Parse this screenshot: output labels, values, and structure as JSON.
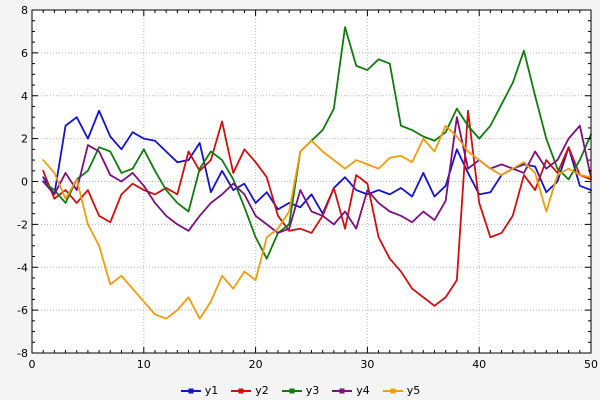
{
  "chart_data": {
    "type": "line",
    "title": "",
    "xlim": [
      0,
      50
    ],
    "ylim": [
      -8,
      8
    ],
    "x_ticks": [
      0,
      10,
      20,
      30,
      40,
      50
    ],
    "y_ticks": [
      -8,
      -6,
      -4,
      -2,
      0,
      2,
      4,
      6,
      8
    ],
    "x_minor_step": 1,
    "y_minor_step": 0.5,
    "grid": true,
    "legend_position": "bottom",
    "plot_bg": "#ffffff",
    "outer_bg": "#f4f4f4",
    "grid_color": "#b8b8b8",
    "x": [
      1,
      2,
      3,
      4,
      5,
      6,
      7,
      8,
      9,
      10,
      11,
      12,
      13,
      14,
      15,
      16,
      17,
      18,
      19,
      20,
      21,
      22,
      23,
      24,
      25,
      26,
      27,
      28,
      29,
      30,
      31,
      32,
      33,
      34,
      35,
      36,
      37,
      38,
      39,
      40,
      41,
      42,
      43,
      44,
      45,
      46,
      47,
      48,
      49,
      50
    ],
    "series": [
      {
        "name": "y1",
        "color": "#1414cc",
        "values": [
          0.2,
          -0.6,
          2.6,
          3.0,
          2.0,
          3.3,
          2.1,
          1.5,
          2.3,
          2.0,
          1.9,
          1.4,
          0.9,
          1.0,
          1.8,
          -0.5,
          0.5,
          -0.4,
          -0.1,
          -1.0,
          -0.5,
          -1.3,
          -1.0,
          -1.2,
          -0.6,
          -1.5,
          -0.3,
          0.2,
          -0.4,
          -0.6,
          -0.4,
          -0.6,
          -0.3,
          -0.7,
          0.4,
          -0.7,
          -0.2,
          1.5,
          0.4,
          -0.6,
          -0.5,
          0.3,
          0.6,
          0.8,
          0.7,
          -0.5,
          0.0,
          1.6,
          -0.2,
          -0.4
        ]
      },
      {
        "name": "y2",
        "color": "#d01010",
        "values": [
          0.5,
          -0.8,
          -0.4,
          -1.0,
          -0.4,
          -1.6,
          -1.9,
          -0.6,
          -0.1,
          -0.4,
          -0.6,
          -0.3,
          -0.6,
          1.4,
          0.5,
          1.0,
          2.8,
          0.4,
          1.5,
          0.9,
          0.2,
          -1.6,
          -2.3,
          -2.2,
          -2.4,
          -1.6,
          -0.3,
          -2.2,
          0.3,
          -0.1,
          -2.6,
          -3.6,
          -4.2,
          -5.0,
          -5.4,
          -5.8,
          -5.4,
          -4.6,
          3.3,
          -1.0,
          -2.6,
          -2.4,
          -1.6,
          0.3,
          -0.4,
          1.0,
          0.4,
          1.6,
          0.3,
          0.1
        ]
      },
      {
        "name": "y3",
        "color": "#107c10",
        "values": [
          0.0,
          -0.4,
          -1.0,
          0.1,
          0.5,
          1.6,
          1.4,
          0.4,
          0.6,
          1.5,
          0.5,
          -0.4,
          -1.0,
          -1.4,
          0.6,
          1.4,
          1.0,
          0.1,
          -1.2,
          -2.6,
          -3.6,
          -2.4,
          -2.0,
          1.4,
          1.9,
          2.4,
          3.4,
          7.2,
          5.4,
          5.2,
          5.7,
          5.5,
          2.6,
          2.4,
          2.1,
          1.9,
          2.3,
          3.4,
          2.6,
          2.0,
          2.6,
          3.6,
          4.6,
          6.1,
          4.0,
          2.0,
          0.6,
          0.1,
          1.0,
          2.2
        ]
      },
      {
        "name": "y4",
        "color": "#7c107c",
        "values": [
          0.0,
          -0.6,
          0.4,
          -0.4,
          1.7,
          1.4,
          0.3,
          0.0,
          0.4,
          -0.2,
          -1.0,
          -1.6,
          -2.0,
          -2.3,
          -1.6,
          -1.0,
          -0.6,
          -0.1,
          -0.6,
          -1.6,
          -2.0,
          -2.4,
          -2.2,
          -0.4,
          -1.4,
          -1.6,
          -2.0,
          -1.4,
          -2.2,
          -0.4,
          -1.0,
          -1.4,
          -1.6,
          -1.9,
          -1.4,
          -1.8,
          -0.9,
          3.0,
          0.6,
          1.0,
          0.6,
          0.8,
          0.6,
          0.4,
          1.4,
          0.6,
          1.0,
          2.0,
          2.6,
          0.2
        ]
      },
      {
        "name": "y5",
        "color": "#ef9c0f",
        "values": [
          1.0,
          0.4,
          -0.8,
          0.1,
          -2.0,
          -3.0,
          -4.8,
          -4.4,
          -5.0,
          -5.6,
          -6.2,
          -6.4,
          -6.0,
          -5.4,
          -6.4,
          -5.6,
          -4.4,
          -5.0,
          -4.2,
          -4.6,
          -2.6,
          -2.2,
          -1.4,
          1.4,
          1.9,
          1.4,
          1.0,
          0.6,
          1.0,
          0.8,
          0.6,
          1.1,
          1.2,
          0.9,
          2.0,
          1.4,
          2.6,
          2.1,
          1.4,
          1.0,
          0.6,
          0.3,
          0.6,
          0.9,
          0.4,
          -1.4,
          0.3,
          0.6,
          0.3,
          0.2
        ]
      }
    ]
  }
}
